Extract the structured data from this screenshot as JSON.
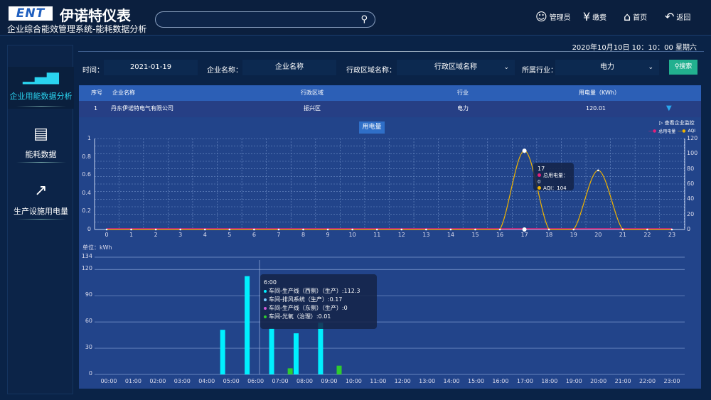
{
  "header": {
    "logo": "ENT",
    "brand": "伊诺特仪表",
    "subtitle": "企业综合能效管理系统-能耗数据分析",
    "search_value": "",
    "nav": [
      {
        "icon": "user-icon",
        "label": "管理员"
      },
      {
        "icon": "yen-icon",
        "label": "缴费"
      },
      {
        "icon": "home-icon",
        "label": "首页"
      },
      {
        "icon": "return-icon",
        "label": "返回"
      }
    ]
  },
  "datetime": "2020年10月10日   10：10：00   星期六",
  "sidebar": {
    "items": [
      {
        "icon": "bar-chart-icon",
        "label": "企业用能数据分析",
        "active": true
      },
      {
        "icon": "monitor-line-icon",
        "label": "能耗数据"
      },
      {
        "icon": "growth-chart-icon",
        "label": "生产设施用电量"
      }
    ]
  },
  "filters": {
    "time_label": "时间：",
    "time_value": "2021-01-19",
    "company_label": "企业名称：",
    "company_value": "企业名称",
    "region_label": "行政区域名称：",
    "region_value": "行政区域名称",
    "industry_label": "所属行业：",
    "industry_value": "电力",
    "search_button": "搜索"
  },
  "table": {
    "headers": [
      "序号",
      "企业名称",
      "行政区域",
      "行业",
      "用电量（KWh）"
    ],
    "rows": [
      [
        "1",
        "丹东伊诺特电气有限公司",
        "振兴区",
        "电力",
        "120.01"
      ]
    ]
  },
  "colors": {
    "accent": "#1fd1f5",
    "cyan": "#00f0ff",
    "green": "#2ecc2e",
    "aqi": "#f0b400",
    "power": "#e0207a"
  },
  "chart_data": [
    {
      "type": "line",
      "legend_button": "用电量",
      "link": "查看企业监控",
      "x": [
        0,
        1,
        2,
        3,
        4,
        5,
        6,
        7,
        8,
        9,
        10,
        11,
        12,
        13,
        14,
        15,
        16,
        17,
        18,
        19,
        20,
        21,
        22,
        23
      ],
      "ylim_left": [
        0,
        1
      ],
      "yticks_left": [
        "0",
        "0.2",
        "0.4",
        "0.6",
        "0.8",
        "1"
      ],
      "ylim_right": [
        0,
        120
      ],
      "yticks_right": [
        "0",
        "20",
        "40",
        "60",
        "80",
        "100",
        "120"
      ],
      "grid": true,
      "legend_position": "top-right",
      "series": [
        {
          "name": "总用电量",
          "axis": "left",
          "values": [
            0,
            0,
            0,
            0,
            0,
            0,
            0,
            0,
            0,
            0,
            0,
            0,
            0,
            0,
            0,
            0,
            0,
            0,
            0,
            0,
            0,
            0,
            0,
            0
          ]
        },
        {
          "name": "AQI",
          "axis": "right",
          "values": [
            0,
            0,
            0,
            0,
            0,
            0,
            0,
            0,
            0,
            0,
            0,
            0,
            0,
            0,
            0,
            0,
            0,
            104,
            0,
            0,
            78,
            0,
            0,
            0
          ]
        }
      ],
      "tooltip": {
        "title": "17",
        "lines": [
          "总用电量：0",
          "AQI：104"
        ]
      }
    },
    {
      "type": "bar",
      "unit_label": "单位：kWh",
      "ylim": [
        0,
        134
      ],
      "yticks": [
        "0",
        "30",
        "60",
        "90",
        "120",
        "134"
      ],
      "categories": [
        "00:00",
        "01:00",
        "02:00",
        "03:00",
        "04:00",
        "05:00",
        "06:00",
        "07:00",
        "08:00",
        "09:00",
        "10:00",
        "11:00",
        "12:00",
        "13:00",
        "14:00",
        "15:00",
        "16:00",
        "17:00",
        "18:00",
        "19:00",
        "20:00",
        "21:00",
        "22:00",
        "23:00"
      ],
      "series": [
        {
          "name": "车间-生产线（西侧）（生产）",
          "values": [
            0,
            0,
            0,
            0,
            0,
            51,
            112.3,
            53,
            47,
            59,
            0,
            0,
            0,
            0,
            0,
            0,
            0,
            0,
            0,
            0,
            0,
            0,
            0,
            0
          ]
        },
        {
          "name": "车间-排风系统（生产）",
          "values": [
            0,
            0,
            0,
            0,
            0,
            0,
            0.17,
            0,
            0,
            0,
            0,
            0,
            0,
            0,
            0,
            0,
            0,
            0,
            0,
            0,
            0,
            0,
            0,
            0
          ]
        },
        {
          "name": "车间-生产线（东侧）（生产）",
          "values": [
            0,
            0,
            0,
            0,
            0,
            0,
            0,
            0,
            0,
            0,
            0,
            0,
            0,
            0,
            0,
            0,
            0,
            0,
            0,
            0,
            0,
            0,
            0,
            0
          ]
        },
        {
          "name": "车间-光氧（治理）",
          "values": [
            0,
            0,
            0,
            0,
            0,
            0,
            0.01,
            7,
            0,
            10,
            0,
            0,
            0,
            0,
            0,
            0,
            0,
            0,
            0,
            0,
            0,
            0,
            0,
            0
          ]
        }
      ],
      "tooltip": {
        "title": "6:00",
        "lines": [
          "车间-生产线（西侧）（生产）:112.3",
          "车间-排风系统（生产）:0.17",
          "车间-生产线（东侧）（生产）:0",
          "车间-光氧（治理）:0.01"
        ]
      }
    }
  ]
}
